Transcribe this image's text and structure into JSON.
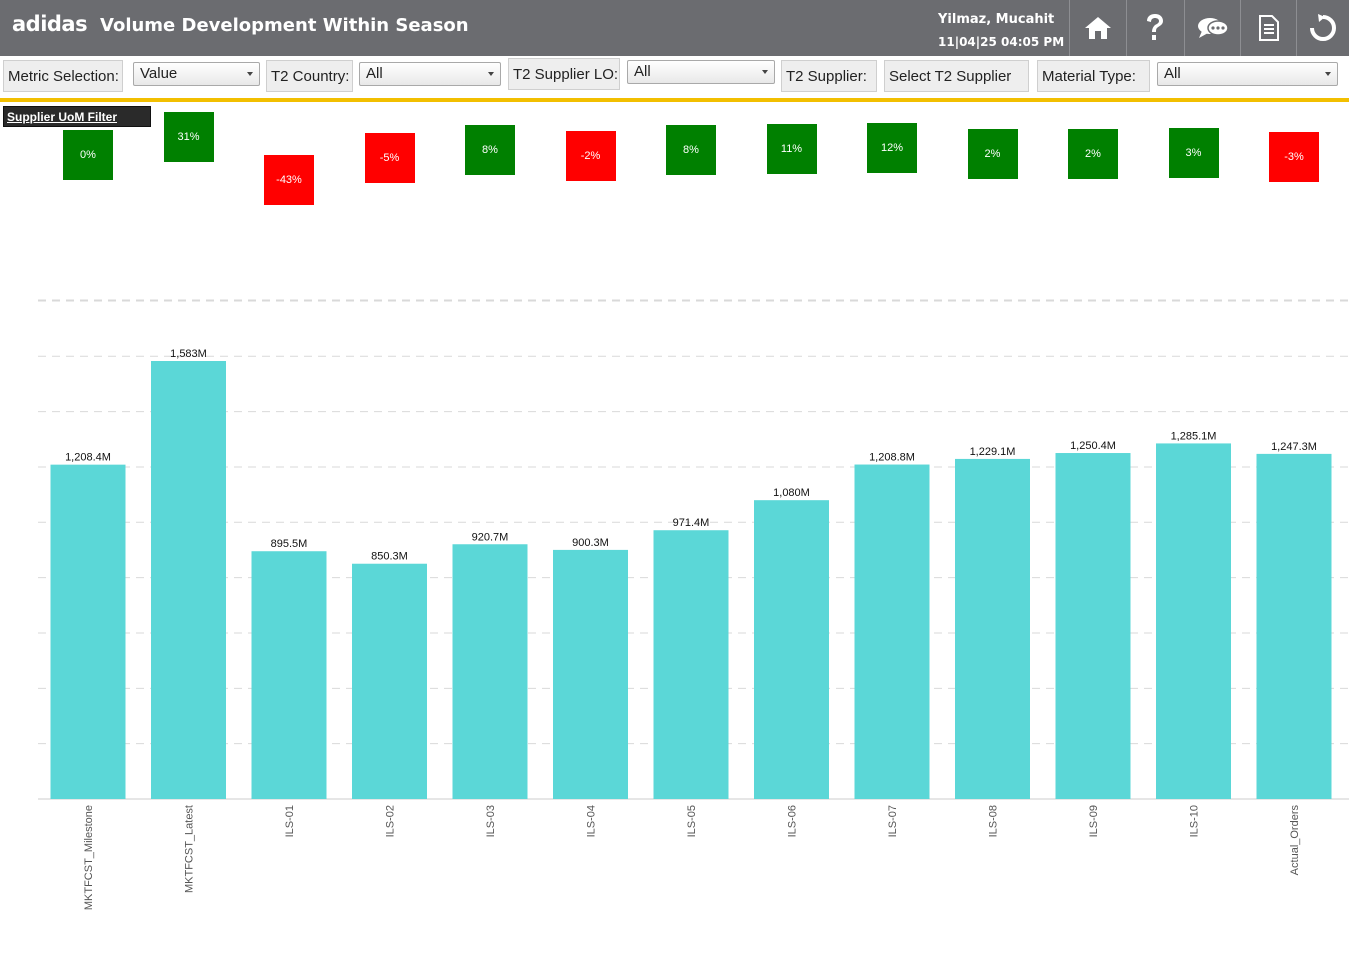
{
  "header": {
    "logo": "adidas",
    "title": "Volume Development Within Season",
    "user_name": "Yilmaz, Mucahit",
    "datetime": "11|04|25 04:05 PM",
    "buttons": [
      {
        "name": "home-button",
        "icon": "home-icon"
      },
      {
        "name": "help-button",
        "icon": "question-icon"
      },
      {
        "name": "comments-button",
        "icon": "chat-icon"
      },
      {
        "name": "document-button",
        "icon": "document-icon"
      },
      {
        "name": "refresh-button",
        "icon": "refresh-icon"
      }
    ]
  },
  "filters": {
    "metric_label": "Metric Selection:",
    "metric_value": "Value",
    "country_label": "T2 Country:",
    "country_value": "All",
    "supplier_lo_label": "T2 Supplier LO:",
    "supplier_lo_value": "All",
    "supplier_label": "T2 Supplier:",
    "supplier_value": "Select T2 Supplier",
    "material_label": "Material Type:",
    "material_value": "All"
  },
  "uom_filter_label": "Supplier UoM Filter",
  "colors": {
    "header_bg": "#6b6c70",
    "accent": "#f2bf00",
    "bar": "#5bd7d7",
    "positive": "#008000",
    "negative": "#ff0000"
  },
  "variance": [
    {
      "label": "0%",
      "value": 0
    },
    {
      "label": "31%",
      "value": 31
    },
    {
      "label": "-43%",
      "value": -43
    },
    {
      "label": "-5%",
      "value": -5
    },
    {
      "label": "8%",
      "value": 8
    },
    {
      "label": "-2%",
      "value": -2
    },
    {
      "label": "8%",
      "value": 8
    },
    {
      "label": "11%",
      "value": 11
    },
    {
      "label": "12%",
      "value": 12
    },
    {
      "label": "2%",
      "value": 2
    },
    {
      "label": "2%",
      "value": 2
    },
    {
      "label": "3%",
      "value": 3
    },
    {
      "label": "-3%",
      "value": -3
    }
  ],
  "chart_data": {
    "type": "bar",
    "categories": [
      "MKTFCST_Milestone",
      "MKTFCST_Latest",
      "ILS-01",
      "ILS-02",
      "ILS-03",
      "ILS-04",
      "ILS-05",
      "ILS-06",
      "ILS-07",
      "ILS-08",
      "ILS-09",
      "ILS-10",
      "Actual_Orders"
    ],
    "values": [
      1208.4,
      1583,
      895.5,
      850.3,
      920.7,
      900.3,
      971.4,
      1080,
      1208.8,
      1229.1,
      1250.4,
      1285.1,
      1247.3
    ],
    "value_labels": [
      "1,208.4M",
      "1,583M",
      "895.5M",
      "850.3M",
      "920.7M",
      "900.3M",
      "971.4M",
      "1,080M",
      "1,208.8M",
      "1,229.1M",
      "1,250.4M",
      "1,285.1M",
      "1,247.3M"
    ],
    "ylim": [
      0,
      1800
    ],
    "grid": true,
    "title": "",
    "xlabel": "",
    "ylabel": ""
  }
}
